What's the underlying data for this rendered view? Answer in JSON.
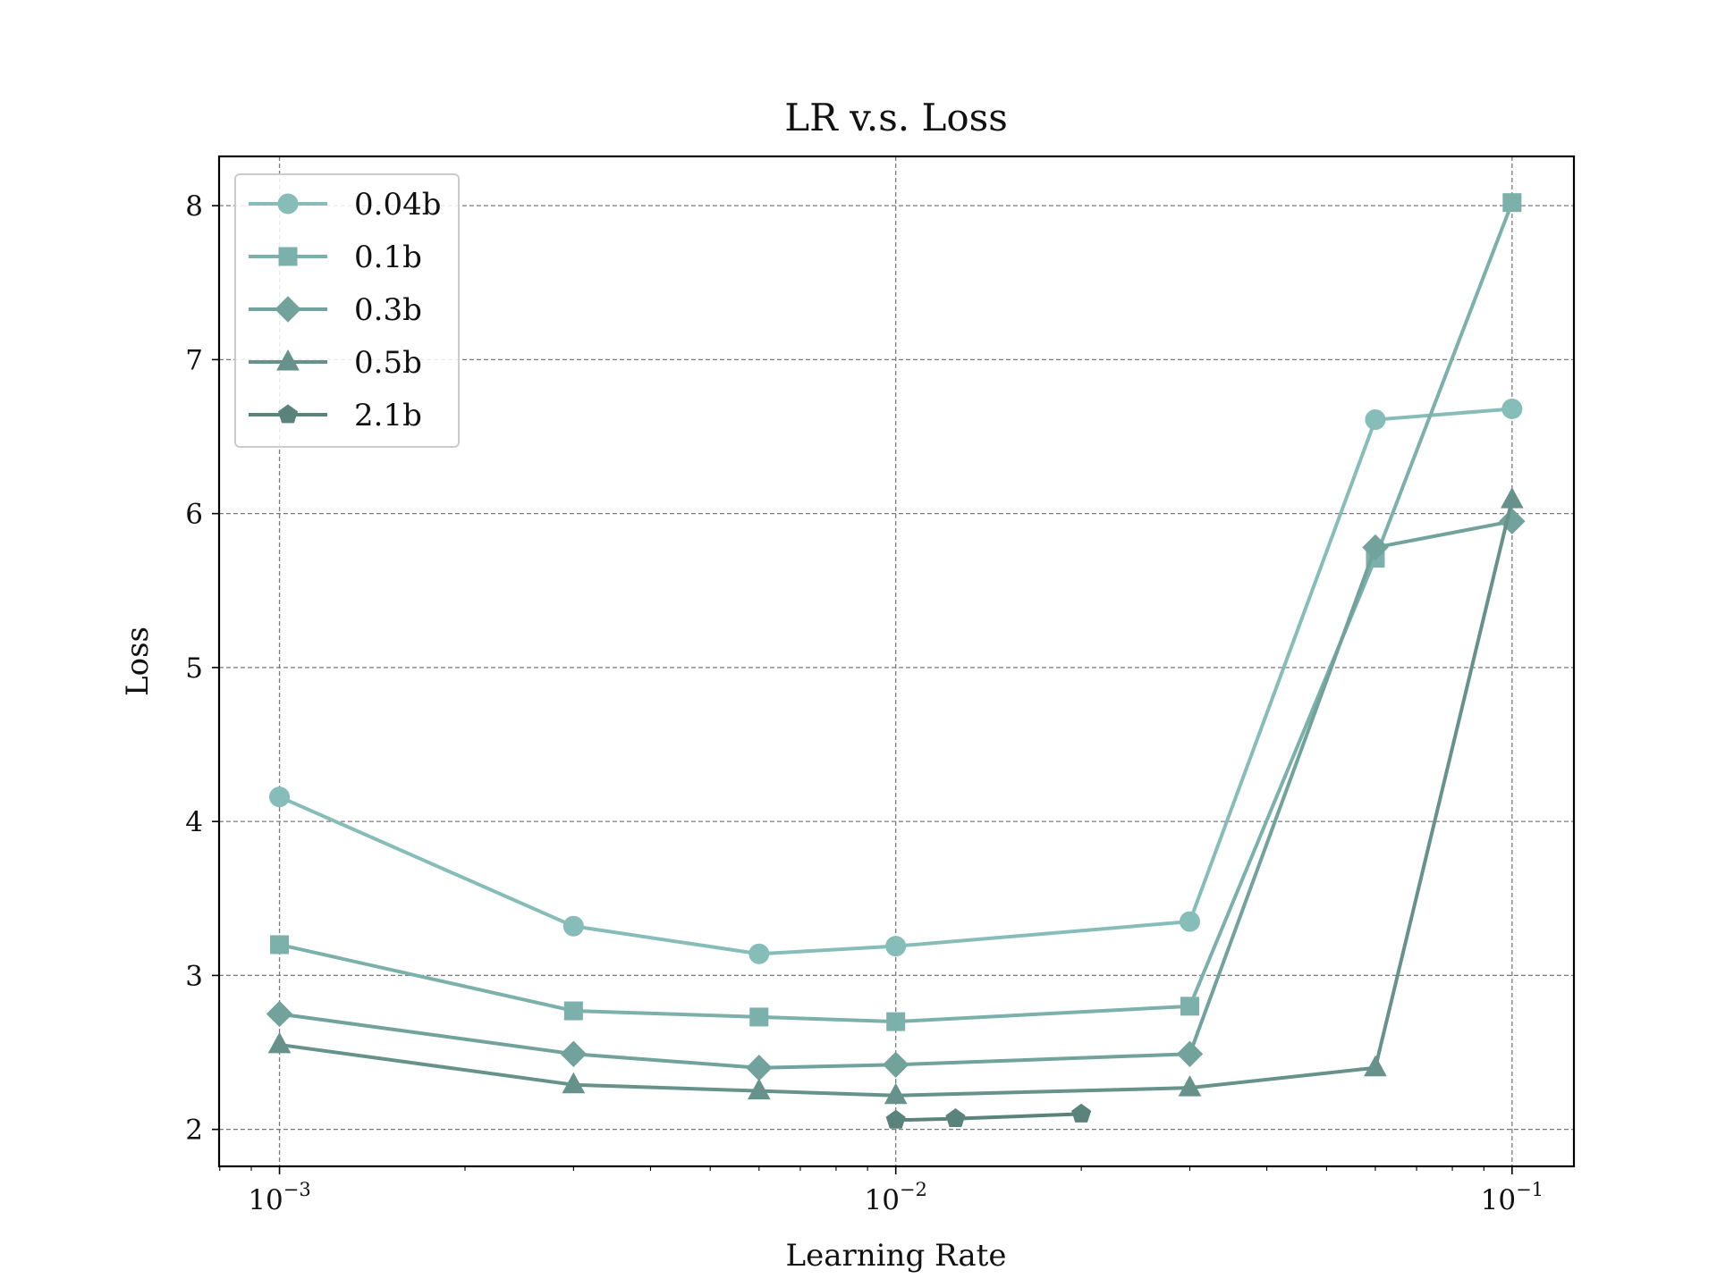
{
  "chart_data": {
    "type": "line",
    "title": "LR v.s. Loss",
    "xlabel": "Learning Rate",
    "ylabel": "Loss",
    "xscale": "log",
    "xlim": [
      0.000798,
      0.126
    ],
    "ylim": [
      1.76,
      8.32
    ],
    "grid": true,
    "legend_position": "top-left",
    "yticks": [
      2,
      3,
      4,
      5,
      6,
      7,
      8
    ],
    "xticks": [
      {
        "value": 0.001,
        "base": "10",
        "exp": "−3"
      },
      {
        "value": 0.01,
        "base": "10",
        "exp": "−2"
      },
      {
        "value": 0.1,
        "base": "10",
        "exp": "−1"
      }
    ],
    "series": [
      {
        "name": "0.04b",
        "marker": "circle",
        "color": "#86bdb8",
        "points": [
          [
            0.001,
            4.16
          ],
          [
            0.003,
            3.32
          ],
          [
            0.006,
            3.14
          ],
          [
            0.01,
            3.19
          ],
          [
            0.03,
            3.35
          ],
          [
            0.06,
            6.61
          ],
          [
            0.1,
            6.68
          ]
        ]
      },
      {
        "name": "0.1b",
        "marker": "square",
        "color": "#7cb0aa",
        "points": [
          [
            0.001,
            3.2
          ],
          [
            0.003,
            2.77
          ],
          [
            0.006,
            2.73
          ],
          [
            0.01,
            2.7
          ],
          [
            0.03,
            2.8
          ],
          [
            0.06,
            5.71
          ],
          [
            0.1,
            8.02
          ]
        ]
      },
      {
        "name": "0.3b",
        "marker": "diamond",
        "color": "#71a29b",
        "points": [
          [
            0.001,
            2.75
          ],
          [
            0.003,
            2.49
          ],
          [
            0.006,
            2.4
          ],
          [
            0.01,
            2.42
          ],
          [
            0.03,
            2.49
          ],
          [
            0.06,
            5.78
          ],
          [
            0.1,
            5.95
          ]
        ]
      },
      {
        "name": "0.5b",
        "marker": "triangle",
        "color": "#66928b",
        "points": [
          [
            0.001,
            2.55
          ],
          [
            0.003,
            2.29
          ],
          [
            0.006,
            2.25
          ],
          [
            0.01,
            2.22
          ],
          [
            0.03,
            2.27
          ],
          [
            0.06,
            2.4
          ],
          [
            0.1,
            6.09
          ]
        ]
      },
      {
        "name": "2.1b",
        "marker": "pentagon",
        "color": "#5a837c",
        "points": [
          [
            0.01,
            2.06
          ],
          [
            0.0125,
            2.07
          ],
          [
            0.02,
            2.1
          ]
        ]
      }
    ]
  }
}
